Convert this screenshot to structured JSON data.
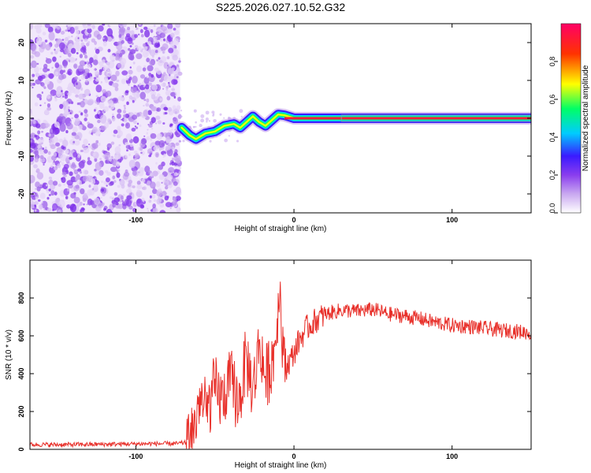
{
  "figure_title": "S225.2026.027.10.52.G32",
  "chart_data": [
    {
      "type": "heatmap",
      "title": "S225.2026.027.10.52.G32",
      "xlabel": "Height of straight line (km)",
      "ylabel": "Frequency (Hz)",
      "xlim": [
        -167,
        150
      ],
      "ylim": [
        -25,
        25
      ],
      "x_ticks": [
        -100,
        0,
        100
      ],
      "y_ticks": [
        -20,
        -10,
        0,
        10,
        20
      ],
      "x_tick_labels": [
        "-100",
        "0",
        "100"
      ],
      "y_tick_labels": [
        "-20",
        "-10",
        "0",
        "10",
        "20"
      ],
      "noise_region_x": [
        -167,
        -72
      ],
      "trace": {
        "description_points_x": [
          -71,
          -66,
          -62,
          -56,
          -50,
          -44,
          -38,
          -34,
          -30,
          -26,
          -22,
          -18,
          -14,
          -10,
          -6,
          0,
          10,
          20,
          40,
          80,
          150
        ],
        "description_points_y": [
          -2.5,
          -4.5,
          -5.5,
          -4.0,
          -3.5,
          -2.0,
          -1.5,
          -2.5,
          -1.0,
          0.5,
          -1.0,
          -2.0,
          -0.5,
          1.0,
          0.8,
          0.0,
          0.0,
          0.0,
          0.0,
          0.0,
          0.0
        ]
      },
      "colorbar": {
        "label": "Normalized spectral amplitude",
        "range": [
          0.0,
          1.0
        ],
        "ticks": [
          0.0,
          0.2,
          0.4,
          0.6,
          0.8
        ],
        "tick_labels": [
          "0.0",
          "0.2",
          "0.4",
          "0.6",
          "0.8"
        ],
        "colors": [
          "#ffffff",
          "#c9a8f0",
          "#8a3dee",
          "#3a1aff",
          "#00ccff",
          "#00ff66",
          "#ffff00",
          "#ff3300",
          "#ff0066"
        ]
      }
    },
    {
      "type": "line",
      "xlabel": "Height of straight line (km)",
      "ylabel": "SNR (10 * v/v)",
      "xlim": [
        -167,
        150
      ],
      "ylim": [
        0,
        1000
      ],
      "x_ticks": [
        -100,
        0,
        100
      ],
      "y_ticks": [
        0,
        200,
        400,
        600,
        800
      ],
      "x_tick_labels": [
        "-100",
        "0",
        "100"
      ],
      "y_tick_labels": [
        "0",
        "200",
        "400",
        "600",
        "800"
      ],
      "line_color": "#e8302a",
      "series": [
        {
          "name": "SNR",
          "x": [
            -167,
            -140,
            -110,
            -90,
            -75,
            -68,
            -64,
            -60,
            -55,
            -50,
            -45,
            -40,
            -35,
            -30,
            -26,
            -22,
            -18,
            -14,
            -11,
            -9,
            -6,
            -3,
            0,
            3,
            8,
            15,
            22,
            30,
            40,
            50,
            60,
            70,
            80,
            90,
            100,
            110,
            120,
            130,
            140,
            150
          ],
          "y": [
            25,
            25,
            28,
            30,
            30,
            35,
            70,
            260,
            200,
            320,
            260,
            360,
            240,
            480,
            300,
            560,
            380,
            460,
            620,
            860,
            420,
            460,
            510,
            570,
            640,
            690,
            720,
            735,
            730,
            740,
            715,
            705,
            690,
            670,
            655,
            650,
            640,
            630,
            625,
            615
          ]
        }
      ]
    }
  ]
}
